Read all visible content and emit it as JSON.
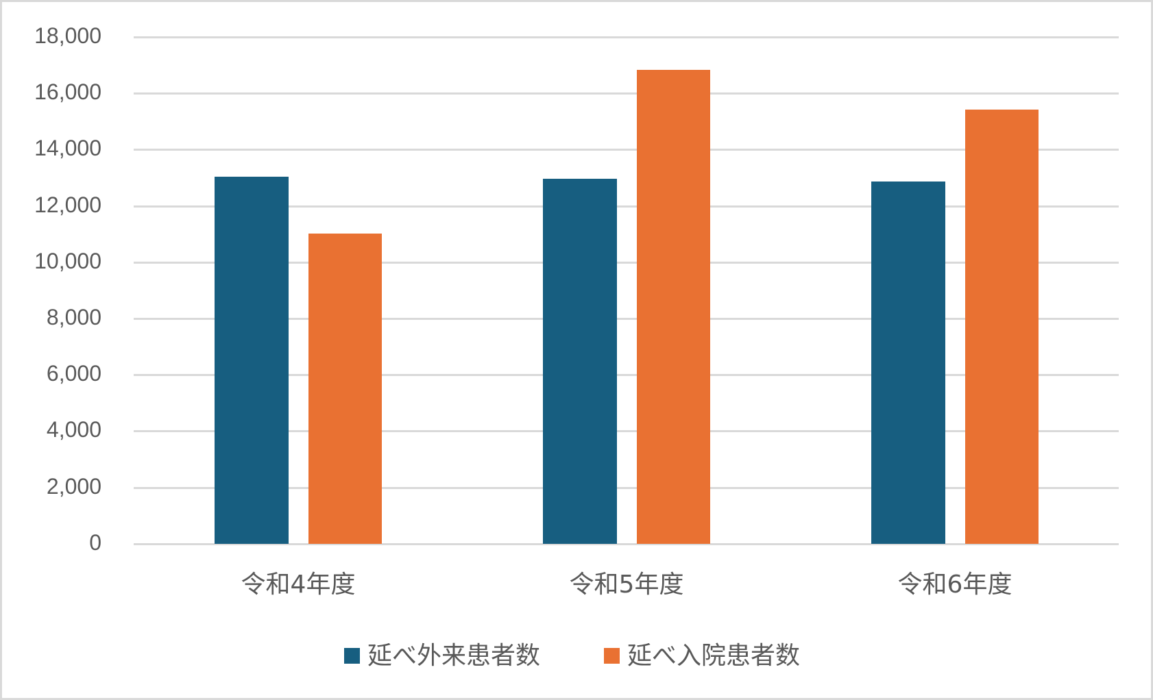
{
  "chart_data": {
    "type": "bar",
    "title": "",
    "xlabel": "",
    "ylabel": "",
    "categories": [
      "令和4年度",
      "令和5年度",
      "令和6年度"
    ],
    "series": [
      {
        "name": "延べ外来患者数",
        "color": "#175E80",
        "values": [
          13050,
          12980,
          12890
        ]
      },
      {
        "name": "延べ入院患者数",
        "color": "#E97132",
        "values": [
          11050,
          16850,
          15450
        ]
      }
    ],
    "ylim": [
      0,
      18000
    ],
    "yticks": [
      0,
      2000,
      4000,
      6000,
      8000,
      10000,
      12000,
      14000,
      16000,
      18000
    ],
    "ytick_labels": [
      "0",
      "2,000",
      "4,000",
      "6,000",
      "8,000",
      "10,000",
      "12,000",
      "14,000",
      "16,000",
      "18,000"
    ],
    "grid": true,
    "legend_position": "bottom"
  },
  "axis": {
    "y_labels": [
      "18,000",
      "16,000",
      "14,000",
      "12,000",
      "10,000",
      "8,000",
      "6,000",
      "4,000",
      "2,000",
      "0"
    ]
  },
  "x_labels": [
    "令和4年度",
    "令和5年度",
    "令和6年度"
  ],
  "legend": [
    {
      "label": "延べ外来患者数",
      "color": "#175E80"
    },
    {
      "label": "延べ入院患者数",
      "color": "#E97132"
    }
  ]
}
